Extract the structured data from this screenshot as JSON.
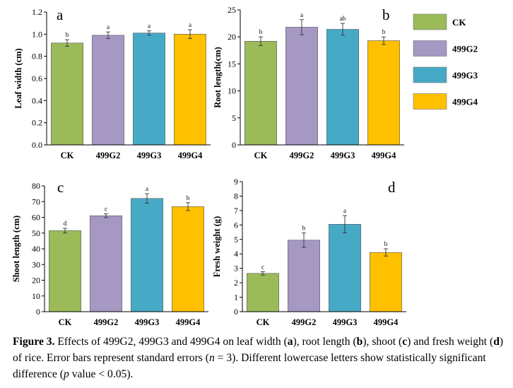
{
  "legend": {
    "position": "top-right",
    "items": [
      {
        "label": "CK",
        "color": "#9bbb59"
      },
      {
        "label": "499G2",
        "color": "#a598c3"
      },
      {
        "label": "499G3",
        "color": "#46aac6"
      },
      {
        "label": "499G4",
        "color": "#ffc000"
      }
    ]
  },
  "chart_data": [
    {
      "type": "bar",
      "panel": "a",
      "ylabel": "Leaf width (cm)",
      "xlabel": "",
      "categories": [
        "CK",
        "499G2",
        "499G3",
        "499G4"
      ],
      "values": [
        0.92,
        0.99,
        1.01,
        1.0
      ],
      "errors": [
        0.03,
        0.03,
        0.02,
        0.04
      ],
      "letters": [
        "b",
        "a",
        "a",
        "a"
      ],
      "colors": [
        "#9bbb59",
        "#a598c3",
        "#46aac6",
        "#ffc000"
      ],
      "ylim": [
        0,
        1.2
      ],
      "ticks": [
        "0.0",
        "0.2",
        "0.4",
        "0.6",
        "0.8",
        "1.0",
        "1.2"
      ]
    },
    {
      "type": "bar",
      "panel": "b",
      "ylabel": "Root length(cm)",
      "xlabel": "",
      "categories": [
        "CK",
        "499G2",
        "499G3",
        "499G4"
      ],
      "values": [
        19.2,
        21.8,
        21.4,
        19.3
      ],
      "errors": [
        0.8,
        1.4,
        1.1,
        0.7
      ],
      "letters": [
        "b",
        "a",
        "ab",
        "b"
      ],
      "colors": [
        "#9bbb59",
        "#a598c3",
        "#46aac6",
        "#ffc000"
      ],
      "ylim": [
        0,
        25
      ],
      "ticks": [
        "0",
        "5",
        "10",
        "15",
        "20",
        "25"
      ]
    },
    {
      "type": "bar",
      "panel": "c",
      "ylabel": "Shoot length (cm)",
      "xlabel": "",
      "categories": [
        "CK",
        "499G2",
        "499G3",
        "499G4"
      ],
      "values": [
        51.5,
        61,
        72,
        66.8
      ],
      "errors": [
        1.5,
        1.2,
        3,
        2.5
      ],
      "letters": [
        "d",
        "c",
        "a",
        "b"
      ],
      "colors": [
        "#9bbb59",
        "#a598c3",
        "#46aac6",
        "#ffc000"
      ],
      "ylim": [
        0,
        80
      ],
      "ticks": [
        "0",
        "10",
        "20",
        "30",
        "40",
        "50",
        "60",
        "70",
        "80"
      ]
    },
    {
      "type": "bar",
      "panel": "d",
      "ylabel": "Fresh weight (g)",
      "xlabel": "",
      "categories": [
        "CK",
        "499G2",
        "499G3",
        "499G4"
      ],
      "values": [
        2.65,
        4.95,
        6.05,
        4.1
      ],
      "errors": [
        0.12,
        0.5,
        0.6,
        0.25
      ],
      "letters": [
        "c",
        "b",
        "a",
        "b"
      ],
      "colors": [
        "#9bbb59",
        "#a598c3",
        "#46aac6",
        "#ffc000"
      ],
      "ylim": [
        0,
        9
      ],
      "ticks": [
        "0",
        "1",
        "2",
        "3",
        "4",
        "5",
        "6",
        "7",
        "8",
        "9"
      ]
    }
  ],
  "caption": {
    "label": "Figure 3.",
    "t1": " Effects of 499G2, 499G3 and 499G4 on leaf width (",
    "a": "a",
    "t2": "), root length (",
    "b": "b",
    "t3": "), shoot (",
    "c": "c",
    "t4": ") and fresh weight (",
    "d": "d",
    "t5": ") of rice.  Error bars represent standard errors (",
    "n": "n",
    "t6": " = 3).  Different lowercase letters show statistically significant difference (",
    "p": "p",
    "t7": " value < 0.05)."
  }
}
